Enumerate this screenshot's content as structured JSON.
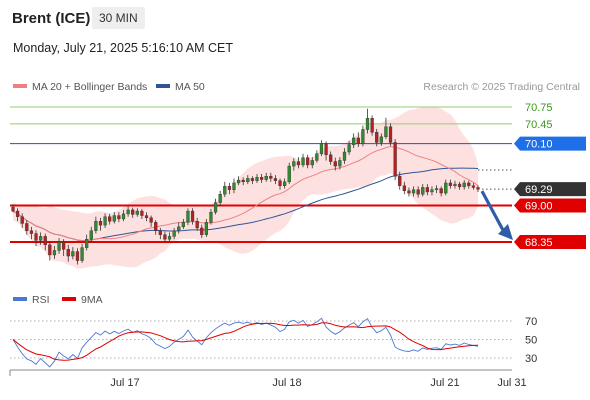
{
  "header": {
    "instrument": "Brent (ICE)",
    "timeframe": "30 MIN",
    "datetime": "Monday, July 21, 2025 5:16:10 AM CET"
  },
  "legend": {
    "ma20": "MA 20 + Bollinger Bands",
    "ma50": "MA 50",
    "credit": "Research © 2025 Trading Central"
  },
  "rsi_legend": {
    "rsi": "RSI",
    "ma9": "9MA"
  },
  "colors": {
    "candle_up": "#2e8b2e",
    "candle_down": "#b22222",
    "ma20": "#f08080",
    "bollinger_fill": "#fddcdc",
    "ma50": "#2f5597",
    "resistance_green": "#8fcf6f",
    "resistance_blue": "#2a4fb0",
    "support_red": "#e00000",
    "badge_blue": "#1f6fe8",
    "badge_red": "#e00000",
    "badge_dark": "#333333",
    "arrow": "#2e5ea8",
    "rsi": "#4a78d0",
    "rsi_ma": "#e00000"
  },
  "chart_data": {
    "type": "candlestick",
    "ylim": [
      67.8,
      71.2
    ],
    "x_ticks": [
      "Jul 17",
      "Jul 18",
      "Jul 21",
      "Jul 31"
    ],
    "levels": [
      {
        "value": 70.75,
        "label": "70.75",
        "kind": "resistance-green",
        "badge": false
      },
      {
        "value": 70.45,
        "label": "70.45",
        "kind": "resistance-green",
        "badge": false
      },
      {
        "value": 70.1,
        "label": "70.10",
        "kind": "resistance-blue",
        "badge": true
      },
      {
        "value": 69.29,
        "label": "69.29",
        "kind": "last-price",
        "badge": true
      },
      {
        "value": 69.0,
        "label": "69.00",
        "kind": "support-red",
        "badge": true
      },
      {
        "value": 68.35,
        "label": "68.35",
        "kind": "support-red",
        "badge": true
      }
    ],
    "candles": [
      [
        68.97,
        68.9,
        69.02,
        68.88
      ],
      [
        68.9,
        68.8,
        68.95,
        68.72
      ],
      [
        68.8,
        68.68,
        68.86,
        68.6
      ],
      [
        68.68,
        68.55,
        68.74,
        68.48
      ],
      [
        68.55,
        68.5,
        68.62,
        68.4
      ],
      [
        68.5,
        68.38,
        68.56,
        68.28
      ],
      [
        68.38,
        68.45,
        68.52,
        68.3
      ],
      [
        68.45,
        68.3,
        68.5,
        68.2
      ],
      [
        68.3,
        68.12,
        68.36,
        68.02
      ],
      [
        68.12,
        68.2,
        68.28,
        68.05
      ],
      [
        68.2,
        68.35,
        68.42,
        68.14
      ],
      [
        68.35,
        68.22,
        68.4,
        68.1
      ],
      [
        68.22,
        68.1,
        68.3,
        68.0
      ],
      [
        68.1,
        68.18,
        68.26,
        68.04
      ],
      [
        68.18,
        68.02,
        68.24,
        67.95
      ],
      [
        68.02,
        68.25,
        68.32,
        67.98
      ],
      [
        68.25,
        68.4,
        68.48,
        68.2
      ],
      [
        68.4,
        68.55,
        68.62,
        68.35
      ],
      [
        68.55,
        68.72,
        68.8,
        68.5
      ],
      [
        68.72,
        68.65,
        68.78,
        68.55
      ],
      [
        68.65,
        68.8,
        68.86,
        68.6
      ],
      [
        68.8,
        68.72,
        68.85,
        68.66
      ],
      [
        68.72,
        68.82,
        68.88,
        68.68
      ],
      [
        68.82,
        68.76,
        68.88,
        68.7
      ],
      [
        68.76,
        68.85,
        68.92,
        68.72
      ],
      [
        68.85,
        68.92,
        68.98,
        68.8
      ],
      [
        68.92,
        68.84,
        68.96,
        68.78
      ],
      [
        68.84,
        68.9,
        68.95,
        68.8
      ],
      [
        68.9,
        68.82,
        68.94,
        68.76
      ],
      [
        68.82,
        68.78,
        68.88,
        68.72
      ],
      [
        68.78,
        68.7,
        68.82,
        68.62
      ],
      [
        68.7,
        68.55,
        68.74,
        68.48
      ],
      [
        68.55,
        68.48,
        68.6,
        68.4
      ],
      [
        68.48,
        68.4,
        68.54,
        68.34
      ],
      [
        68.4,
        68.45,
        68.52,
        68.36
      ],
      [
        68.45,
        68.55,
        68.6,
        68.4
      ],
      [
        68.55,
        68.62,
        68.7,
        68.5
      ],
      [
        68.62,
        68.7,
        68.76,
        68.58
      ],
      [
        68.7,
        68.9,
        68.95,
        68.65
      ],
      [
        68.9,
        68.72,
        68.95,
        68.66
      ],
      [
        68.72,
        68.6,
        68.78,
        68.55
      ],
      [
        68.6,
        68.48,
        68.66,
        68.42
      ],
      [
        68.48,
        68.7,
        68.76,
        68.44
      ],
      [
        68.7,
        68.88,
        68.94,
        68.66
      ],
      [
        68.88,
        69.05,
        69.12,
        68.84
      ],
      [
        69.05,
        69.2,
        69.26,
        69.0
      ],
      [
        69.2,
        69.34,
        69.42,
        69.15
      ],
      [
        69.34,
        69.28,
        69.4,
        69.2
      ],
      [
        69.28,
        69.4,
        69.48,
        69.22
      ],
      [
        69.4,
        69.45,
        69.52,
        69.36
      ],
      [
        69.45,
        69.42,
        69.5,
        69.36
      ],
      [
        69.42,
        69.48,
        69.54,
        69.38
      ],
      [
        69.48,
        69.44,
        69.52,
        69.38
      ],
      [
        69.44,
        69.5,
        69.56,
        69.4
      ],
      [
        69.5,
        69.46,
        69.56,
        69.4
      ],
      [
        69.46,
        69.52,
        69.58,
        69.42
      ],
      [
        69.52,
        69.48,
        69.58,
        69.42
      ],
      [
        69.48,
        69.44,
        69.54,
        69.38
      ],
      [
        69.44,
        69.35,
        69.48,
        69.28
      ],
      [
        69.35,
        69.42,
        69.48,
        69.3
      ],
      [
        69.42,
        69.7,
        69.76,
        69.38
      ],
      [
        69.7,
        69.78,
        69.84,
        69.62
      ],
      [
        69.78,
        69.72,
        69.86,
        69.66
      ],
      [
        69.72,
        69.85,
        69.92,
        69.68
      ],
      [
        69.85,
        69.72,
        69.9,
        69.66
      ],
      [
        69.72,
        69.8,
        69.86,
        69.66
      ],
      [
        69.8,
        69.92,
        69.98,
        69.76
      ],
      [
        69.92,
        70.1,
        70.16,
        69.88
      ],
      [
        70.1,
        69.9,
        70.14,
        69.8
      ],
      [
        69.9,
        69.78,
        69.96,
        69.72
      ],
      [
        69.78,
        69.7,
        69.85,
        69.62
      ],
      [
        69.7,
        69.8,
        69.86,
        69.64
      ],
      [
        69.8,
        69.95,
        70.02,
        69.74
      ],
      [
        69.95,
        70.08,
        70.15,
        69.9
      ],
      [
        70.08,
        70.2,
        70.28,
        70.02
      ],
      [
        70.2,
        70.1,
        70.3,
        70.04
      ],
      [
        70.1,
        70.35,
        70.42,
        70.05
      ],
      [
        70.35,
        70.55,
        70.72,
        70.28
      ],
      [
        70.55,
        70.3,
        70.6,
        70.24
      ],
      [
        70.3,
        70.12,
        70.36,
        70.05
      ],
      [
        70.12,
        70.22,
        70.28,
        70.06
      ],
      [
        70.22,
        70.4,
        70.56,
        70.18
      ],
      [
        70.4,
        70.12,
        70.46,
        70.06
      ],
      [
        70.12,
        69.52,
        70.18,
        69.45
      ],
      [
        69.52,
        69.35,
        69.6,
        69.28
      ],
      [
        69.35,
        69.26,
        69.42,
        69.2
      ],
      [
        69.26,
        69.22,
        69.32,
        69.16
      ],
      [
        69.22,
        69.28,
        69.34,
        69.16
      ],
      [
        69.28,
        69.2,
        69.34,
        69.14
      ],
      [
        69.2,
        69.32,
        69.38,
        69.16
      ],
      [
        69.32,
        69.24,
        69.38,
        69.18
      ],
      [
        69.24,
        69.28,
        69.34,
        69.18
      ],
      [
        69.28,
        69.3,
        69.36,
        69.22
      ],
      [
        69.3,
        69.22,
        69.34,
        69.16
      ],
      [
        69.22,
        69.4,
        69.46,
        69.18
      ],
      [
        69.4,
        69.35,
        69.46,
        69.3
      ],
      [
        69.35,
        69.38,
        69.44,
        69.3
      ],
      [
        69.38,
        69.33,
        69.42,
        69.28
      ],
      [
        69.33,
        69.4,
        69.45,
        69.28
      ],
      [
        69.4,
        69.35,
        69.44,
        69.3
      ],
      [
        69.35,
        69.32,
        69.4,
        69.28
      ],
      [
        69.32,
        69.29,
        69.36,
        69.24
      ]
    ],
    "rsi_axis": {
      "ylim": [
        20,
        80
      ],
      "ticks": [
        70,
        50,
        30
      ],
      "dotted": [
        70,
        50,
        30
      ]
    },
    "rsi_x_ticks": [
      "Jul 17",
      "Jul 18",
      "Jul 21",
      "Jul 31"
    ],
    "projection": {
      "from": 69.29,
      "to": 68.35
    }
  },
  "axis_labels": {
    "x": [
      "Jul 17",
      "Jul 18",
      "Jul 21",
      "Jul 31"
    ],
    "rsi": [
      "70",
      "50",
      "30"
    ]
  }
}
